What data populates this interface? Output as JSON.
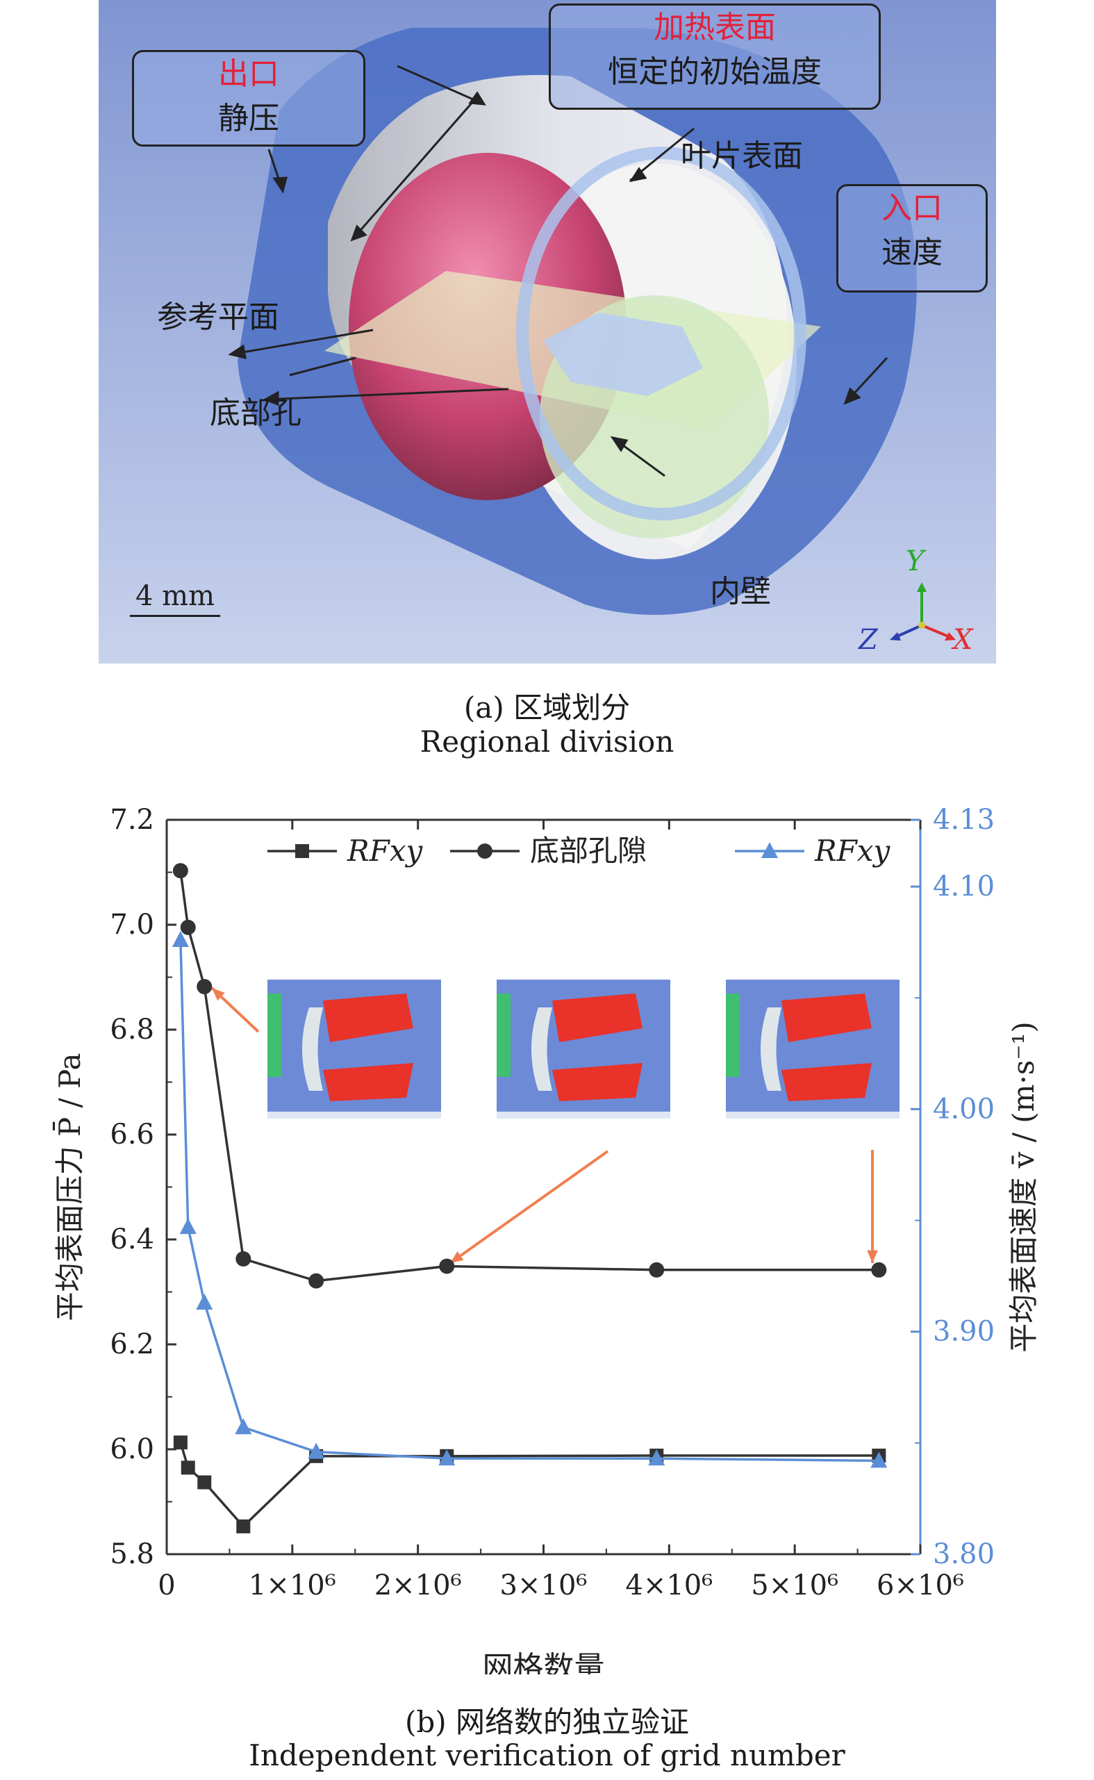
{
  "panel_a": {
    "callouts": {
      "outlet": {
        "title": "出口",
        "subtitle": "静压"
      },
      "heated": {
        "title": "加热表面",
        "subtitle": "恒定的初始温度"
      },
      "inlet": {
        "title": "入口",
        "subtitle": "速度"
      }
    },
    "labels": {
      "blade": "叶片表面",
      "reference": "参考平面",
      "bottom_hole": "底部孔",
      "inner_wall": "内壁"
    },
    "scale_bar": "4 mm",
    "axes": {
      "x": "X",
      "y": "Y",
      "z": "Z"
    },
    "caption_cn": "(a) 区域划分",
    "caption_en": "Regional division"
  },
  "panel_b": {
    "caption_cn": "(b) 网络数的独立验证",
    "caption_en": "Independent verification of grid number"
  },
  "chart_data": {
    "type": "line",
    "xlabel": "网格数量",
    "ylabel_left": "平均表面压力 P̄ / Pa",
    "ylabel_right": "平均表面速度 v̄ / (m·s⁻¹)",
    "xlim": [
      0,
      6000000
    ],
    "ylim_left": [
      5.8,
      7.2
    ],
    "ylim_right": [
      3.8,
      4.13
    ],
    "x_ticks": [
      "0",
      "1×10⁶",
      "2×10⁶",
      "3×10⁶",
      "4×10⁶",
      "5×10⁶",
      "6×10⁶"
    ],
    "y_ticks_left": [
      "5.8",
      "6.0",
      "6.2",
      "6.4",
      "6.6",
      "6.8",
      "7.0",
      "7.2"
    ],
    "y_ticks_right": [
      "3.80",
      "3.90",
      "4.00",
      "4.10",
      "4.13"
    ],
    "legend_position": "top",
    "colors": {
      "dark": "#333333",
      "blue": "#5b8ed6",
      "arrow": "#f07f50",
      "right_axis": "#5b8ed6"
    },
    "series": [
      {
        "name": "RFxy",
        "axis": "left",
        "marker": "square",
        "color": "#333333",
        "x": [
          110000,
          170000,
          300000,
          610000,
          1190000,
          2230000,
          3900000,
          5670000
        ],
        "values": [
          6.013,
          5.965,
          5.937,
          5.853,
          5.987,
          5.987,
          5.988,
          5.988
        ]
      },
      {
        "name": "底部孔隙",
        "axis": "left",
        "marker": "circle",
        "color": "#333333",
        "x": [
          110000,
          170000,
          300000,
          610000,
          1190000,
          2230000,
          3900000,
          5670000
        ],
        "values": [
          7.103,
          6.995,
          6.882,
          6.363,
          6.321,
          6.349,
          6.342,
          6.342
        ]
      },
      {
        "name": "RFxy",
        "axis": "right",
        "marker": "triangle",
        "color": "#5b8ed6",
        "x": [
          110000,
          170000,
          300000,
          610000,
          1190000,
          2230000,
          3900000,
          5670000
        ],
        "values": [
          4.076,
          3.947,
          3.913,
          3.857,
          3.846,
          3.843,
          3.843,
          3.842
        ]
      }
    ]
  }
}
